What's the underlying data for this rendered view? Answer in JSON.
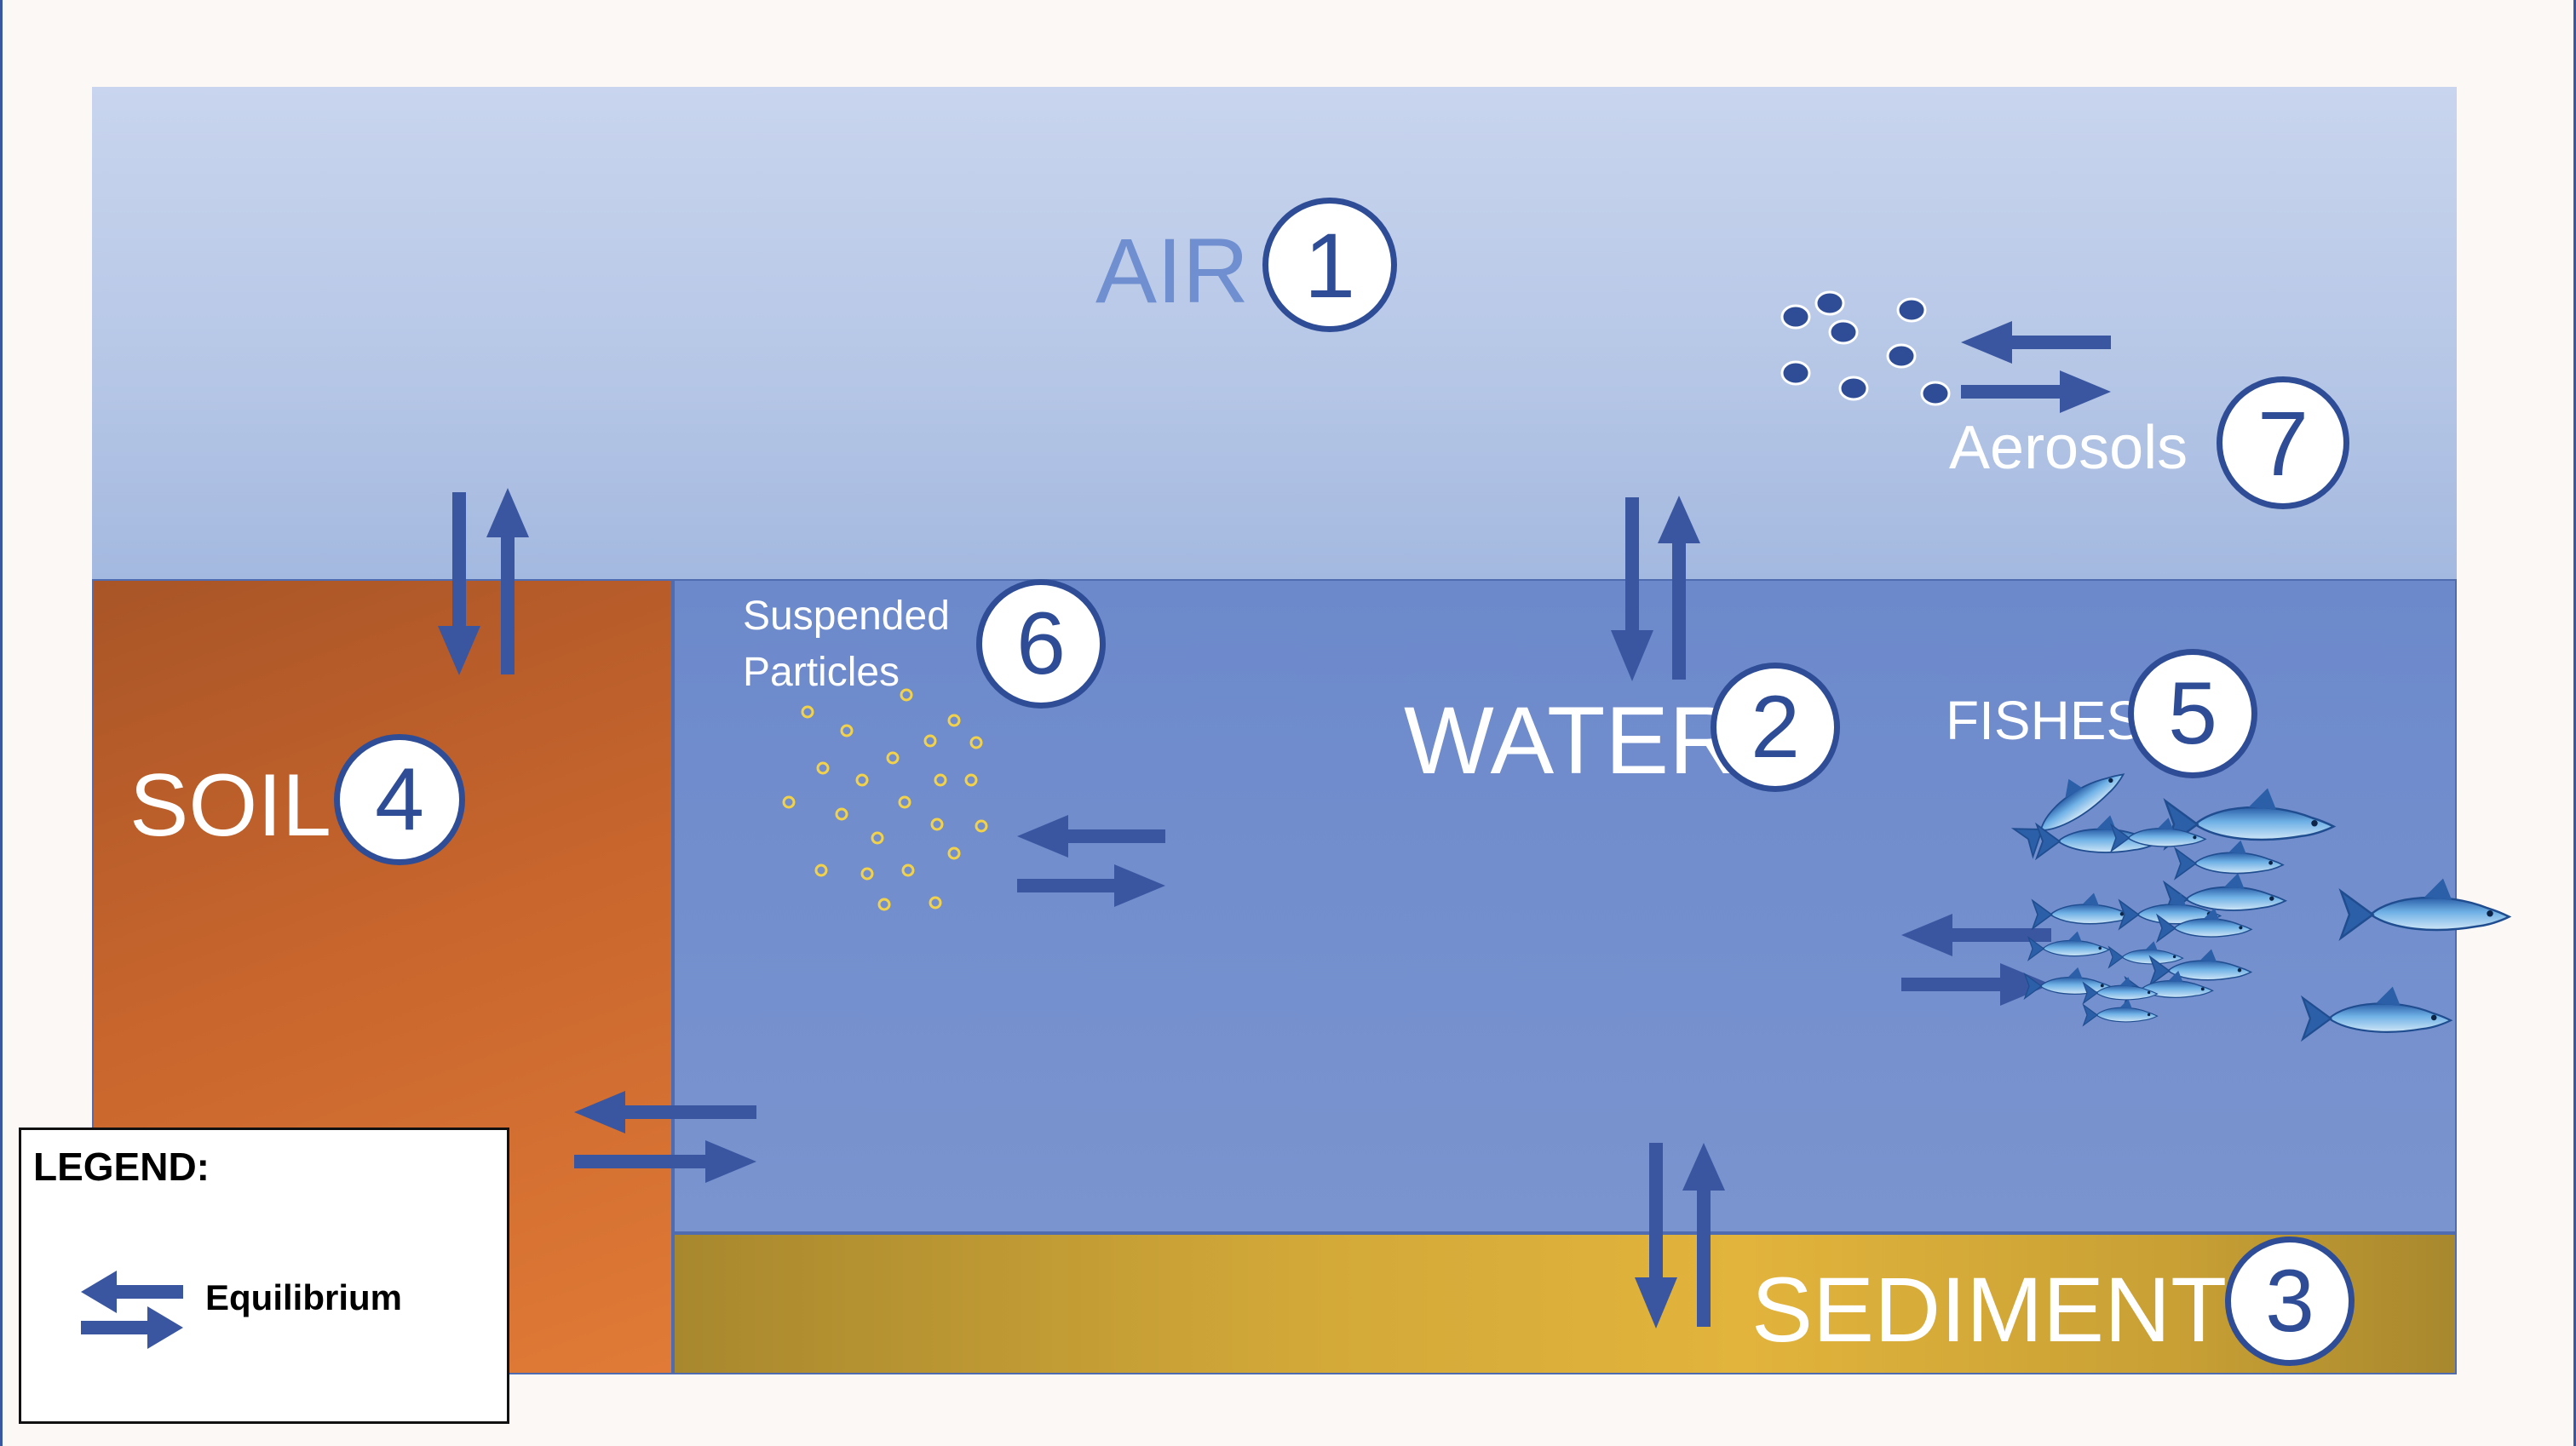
{
  "compartments": {
    "air": {
      "label": "AIR",
      "number": "1"
    },
    "water": {
      "label": "WATER",
      "number": "2"
    },
    "sediment": {
      "label": "SEDIMENT",
      "number": "3"
    },
    "soil": {
      "label": "SOIL",
      "number": "4"
    },
    "fishes": {
      "label": "FISHES",
      "number": "5"
    },
    "suspended_particles": {
      "label_line1": "Suspended",
      "label_line2": "Particles",
      "number": "6"
    },
    "aerosols": {
      "label": "Aerosols",
      "number": "7"
    }
  },
  "legend": {
    "title": "LEGEND:",
    "items": [
      {
        "icon": "equilibrium-arrows-icon",
        "label": "Equilibrium"
      }
    ]
  },
  "colors": {
    "arrow": "#3a56a0",
    "circle_border": "#2e4d96",
    "air_label": "#6f8fd0",
    "particle_outline": "#f2d24a",
    "aerosol_dot": "#2e4d96"
  }
}
